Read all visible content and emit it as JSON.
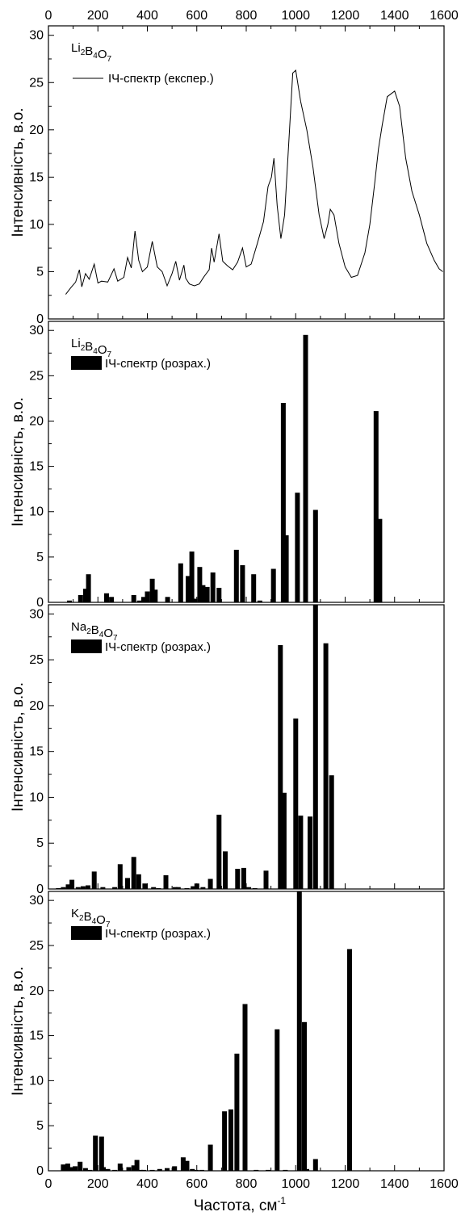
{
  "chart_data": {
    "type": "bar",
    "xlabel": "Частота, см",
    "xlabel_sup": "-1",
    "ylabel": "Інтенсивність, в.о.",
    "xlim": [
      0,
      1600
    ],
    "ylim": [
      0,
      31
    ],
    "x_ticks": [
      0,
      200,
      400,
      600,
      800,
      1000,
      1200,
      1400,
      1600
    ],
    "y_ticks": [
      0,
      5,
      10,
      15,
      20,
      25,
      30
    ],
    "panels": [
      {
        "compound": [
          [
            "Li",
            "2"
          ],
          [
            "B",
            "4"
          ],
          [
            "O",
            "7"
          ]
        ],
        "type": "line",
        "legend": "ІЧ-спектр (експер.)",
        "x": [
          70,
          90,
          110,
          125,
          135,
          150,
          165,
          185,
          200,
          215,
          240,
          265,
          280,
          305,
          320,
          335,
          350,
          365,
          380,
          400,
          420,
          440,
          460,
          480,
          500,
          515,
          530,
          548,
          555,
          570,
          590,
          610,
          630,
          650,
          660,
          670,
          690,
          705,
          725,
          745,
          765,
          785,
          800,
          820,
          845,
          870,
          888,
          902,
          912,
          925,
          940,
          955,
          975,
          988,
          1000,
          1020,
          1045,
          1070,
          1095,
          1115,
          1130,
          1140,
          1155,
          1175,
          1200,
          1225,
          1250,
          1280,
          1300,
          1320,
          1335,
          1350,
          1370,
          1385,
          1400,
          1420,
          1445,
          1470,
          1500,
          1530,
          1560,
          1580,
          1595
        ],
        "y": [
          2.6,
          3.3,
          3.9,
          5.2,
          3.4,
          4.8,
          4.2,
          5.8,
          3.8,
          4.0,
          3.9,
          5.3,
          4.0,
          4.4,
          6.5,
          5.4,
          9.3,
          6.2,
          5.0,
          5.5,
          8.2,
          5.5,
          5.0,
          3.5,
          4.8,
          6.1,
          4.1,
          5.7,
          4.3,
          3.7,
          3.5,
          3.7,
          4.5,
          5.2,
          7.5,
          6.0,
          9.0,
          6.1,
          5.6,
          5.2,
          6.0,
          7.5,
          5.5,
          5.8,
          8.0,
          10.3,
          14.0,
          15.0,
          17.0,
          12.0,
          8.5,
          11.0,
          20.0,
          26.0,
          26.3,
          23.0,
          20.0,
          16.0,
          11.0,
          8.5,
          10.0,
          11.6,
          11.0,
          8.0,
          5.5,
          4.4,
          4.6,
          7.0,
          10.0,
          14.5,
          18.0,
          20.5,
          23.5,
          23.8,
          24.1,
          22.5,
          17.0,
          13.5,
          11.0,
          8.0,
          6.2,
          5.3,
          5.0
        ]
      },
      {
        "compound": [
          [
            "Li",
            "2"
          ],
          [
            "B",
            "4"
          ],
          [
            "O",
            "7"
          ]
        ],
        "type": "bar",
        "legend": "ІЧ-спектр (розрах.)",
        "x": [
          85,
          130,
          150,
          162,
          235,
          255,
          345,
          368,
          385,
          400,
          420,
          432,
          482,
          535,
          565,
          580,
          592,
          612,
          625,
          642,
          665,
          690,
          760,
          785,
          830,
          855,
          910,
          950,
          962,
          1007,
          1040,
          1080
        ],
        "values": [
          0.2,
          0.8,
          1.5,
          3.1,
          1.0,
          0.6,
          0.8,
          0.2,
          0.6,
          1.2,
          2.6,
          1.4,
          0.6,
          4.3,
          2.9,
          5.6,
          0.4,
          3.9,
          1.9,
          1.7,
          3.3,
          1.6,
          5.8,
          4.1,
          3.1,
          0.2,
          3.7,
          22.0,
          7.4,
          12.1,
          29.5,
          10.2
        ],
        "x2": [
          1325,
          1340
        ],
        "values2": [
          21.1,
          9.2
        ]
      },
      {
        "compound": [
          [
            "Na",
            "2"
          ],
          [
            "B",
            "4"
          ],
          [
            "O",
            "7"
          ]
        ],
        "type": "bar",
        "legend": "ІЧ-спектр (розрах.)",
        "x": [
          40,
          60,
          80,
          95,
          120,
          140,
          160,
          185,
          220,
          268,
          290,
          320,
          345,
          365,
          390,
          425,
          445,
          475,
          512,
          525,
          560,
          585,
          600,
          625,
          655,
          690,
          715,
          765,
          790,
          810,
          835,
          880,
          938,
          953,
          1000,
          1020,
          1058,
          1080,
          1122,
          1145
        ],
        "values": [
          0.1,
          0.2,
          0.5,
          1.0,
          0.2,
          0.3,
          0.4,
          1.9,
          0.2,
          0.2,
          2.7,
          1.2,
          3.5,
          1.6,
          0.6,
          0.2,
          0.1,
          1.5,
          0.2,
          0.2,
          0.1,
          0.3,
          0.6,
          0.2,
          1.1,
          8.1,
          4.1,
          2.2,
          2.3,
          0.2,
          0.1,
          2.0,
          26.6,
          10.5,
          18.6,
          8.0,
          7.9,
          31.5,
          26.8,
          12.4
        ]
      },
      {
        "compound": [
          [
            "K",
            "2"
          ],
          [
            "B",
            "4"
          ],
          [
            "O",
            "7"
          ]
        ],
        "type": "bar",
        "legend": "ІЧ-спектр (розрах.)",
        "x": [
          60,
          78,
          95,
          108,
          128,
          150,
          168,
          190,
          215,
          222,
          240,
          268,
          290,
          325,
          345,
          358,
          372,
          385,
          420,
          450,
          480,
          510,
          545,
          560,
          582,
          598,
          620,
          655,
          712,
          738,
          762,
          795,
          840,
          888,
          925,
          958,
          1015,
          1035,
          1045,
          1080,
          1218
        ],
        "values": [
          0.7,
          0.8,
          0.4,
          0.5,
          1.0,
          0.3,
          0.1,
          3.9,
          3.8,
          0.4,
          0.2,
          0.1,
          0.8,
          0.4,
          0.6,
          1.2,
          0.1,
          0.1,
          0.1,
          0.2,
          0.3,
          0.5,
          1.5,
          1.1,
          0.2,
          0.1,
          0.1,
          2.9,
          6.6,
          6.8,
          13.0,
          18.5,
          0.1,
          0.1,
          15.7,
          0.1,
          31.5,
          16.5,
          0.2,
          1.3,
          24.6
        ]
      }
    ]
  }
}
